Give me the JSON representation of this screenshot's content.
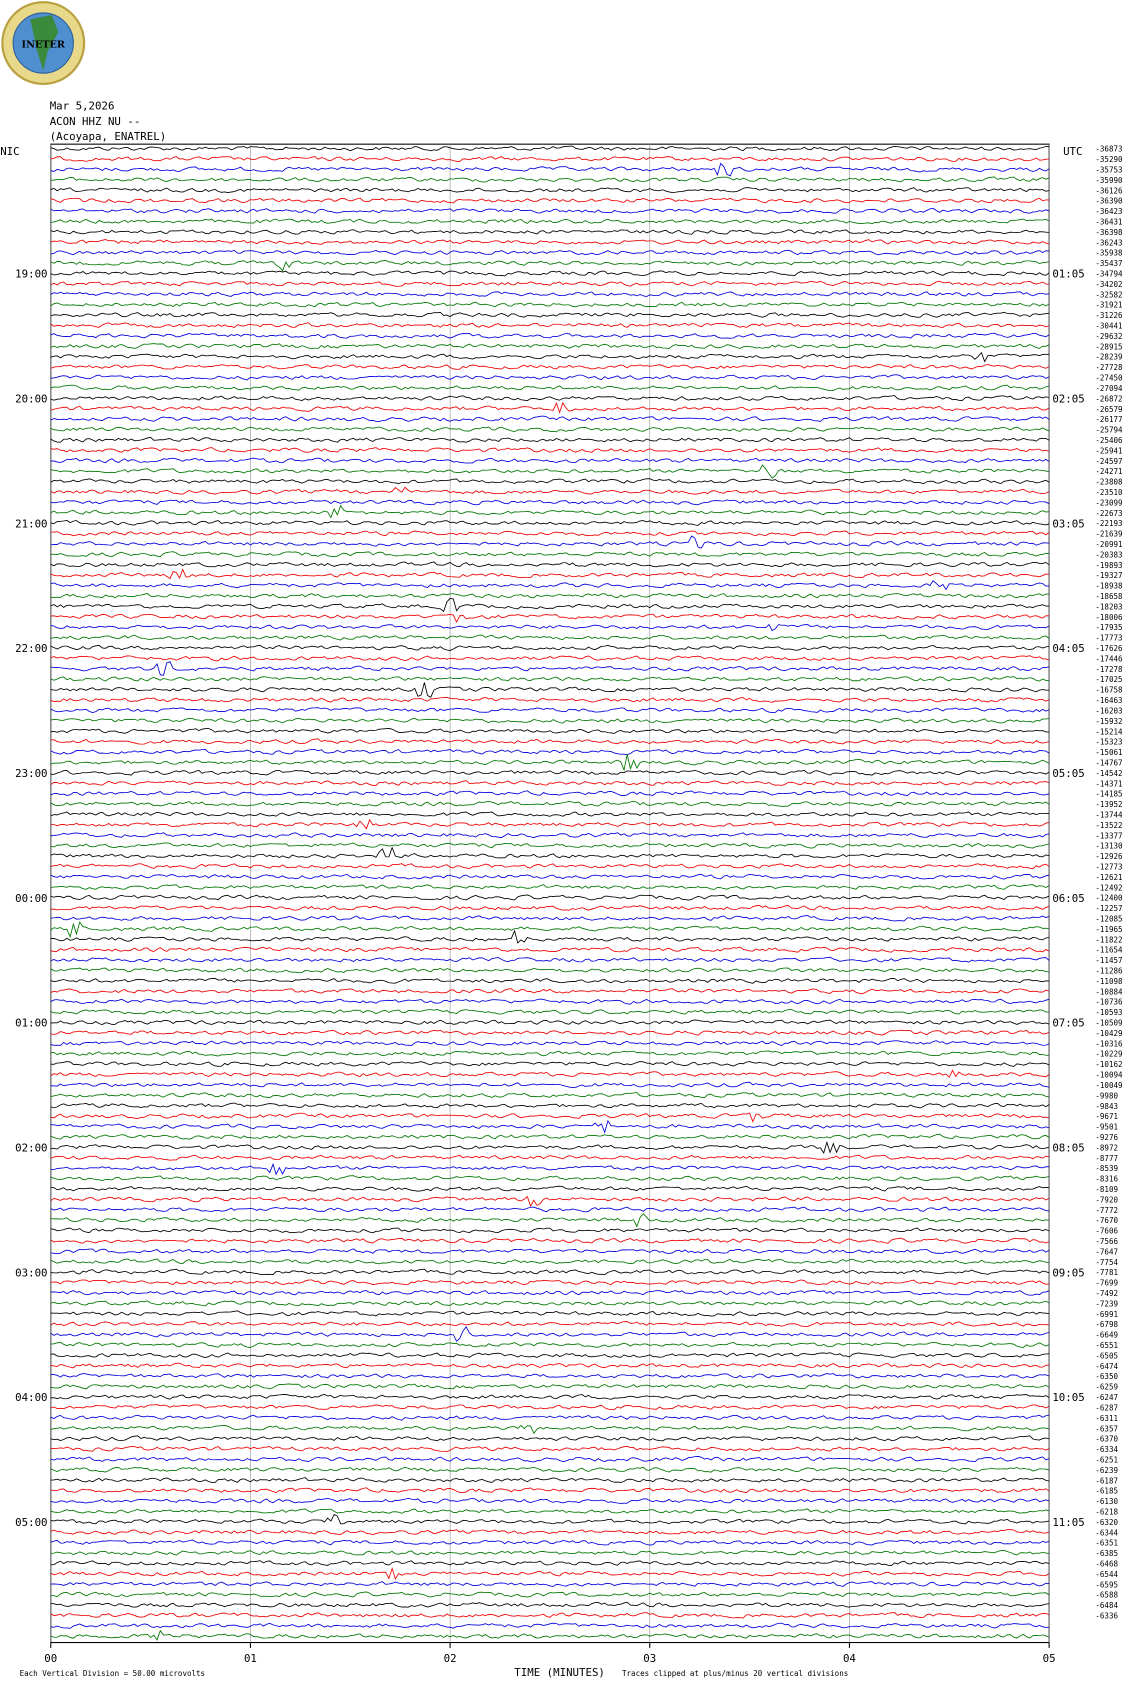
{
  "logo": "INETER",
  "header": {
    "date": "Mar 5,2026",
    "station": "ACON HHZ NU --",
    "location": "(Acoyapa, ENATREL)"
  },
  "left_axis": {
    "label": "NIC",
    "times": [
      "19:00",
      "20:00",
      "21:00",
      "22:00",
      "23:00",
      "00:00",
      "01:00",
      "02:00",
      "03:00",
      "04:00",
      "05:00"
    ]
  },
  "right_axis": {
    "label": "UTC",
    "times": [
      "01:05",
      "02:05",
      "03:05",
      "04:05",
      "05:05",
      "06:05",
      "07:05",
      "08:05",
      "09:05",
      "10:05",
      "11:05"
    ]
  },
  "row_offsets": [
    -36873,
    -35290,
    -35753,
    -35990,
    -36126,
    -36390,
    -36423,
    -36431,
    -36398,
    -36243,
    -35938,
    -35437,
    -34794,
    -34202,
    -32582,
    -31921,
    -31226,
    -30441,
    -29632,
    -28915,
    -28239,
    -27728,
    -27450,
    -27094,
    -26872,
    -26579,
    -26177,
    -25794,
    -25406,
    -25941,
    -24597,
    -24271,
    -23808,
    -23510,
    -23099,
    -22673,
    -22193,
    -21639,
    -20991,
    -20383,
    -19893,
    -19327,
    -18938,
    -18658,
    -18203,
    -18006,
    -17935,
    -17773,
    -17626,
    -17446,
    -17278,
    -17025,
    -16758,
    -16463,
    -16203,
    -15932,
    -15214,
    -15323,
    -15061,
    -14767,
    -14542,
    -14371,
    -14185,
    -13952,
    -13744,
    -13522,
    -13377,
    -13130,
    -12926,
    -12773,
    -12621,
    -12492,
    -12400,
    -12257,
    -12085,
    -11965,
    -11822,
    -11654,
    -11457,
    -11286,
    -11098,
    -10884,
    -10736,
    -10593,
    -10509,
    -10429,
    -10316,
    -10229,
    -10162,
    -10094,
    -10049,
    -9980,
    -9843,
    -9671,
    -9501,
    -9276,
    -8972,
    -8777,
    -8539,
    -8316,
    -8109,
    -7920,
    -7772,
    -7670,
    -7606,
    -7566,
    -7647,
    -7754,
    -7781,
    -7699,
    -7492,
    -7239,
    -6991,
    -6798,
    -6649,
    -6551,
    -6505,
    -6474,
    -6350,
    -6259,
    -6247,
    -6287,
    -6311,
    -6357,
    -6370,
    -6334,
    -6251,
    -6239,
    -6187,
    -6185,
    -6130,
    -6218,
    -6320,
    -6344,
    -6351,
    -6385,
    -6468,
    -6544,
    -6595,
    -6588,
    -6484,
    -6336
  ],
  "x_axis": {
    "label": "TIME (MINUTES)",
    "ticks": [
      "00",
      "01",
      "02",
      "03",
      "04",
      "05"
    ]
  },
  "footer": {
    "scale_note": "Each Vertical Division =  50.00 microvolts",
    "clip_note": "Traces clipped at plus/minus 20 vertical divisions"
  }
}
